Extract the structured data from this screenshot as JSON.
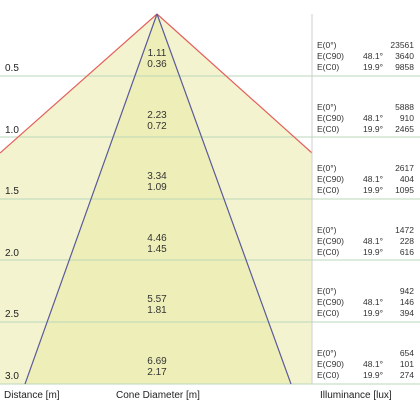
{
  "colors": {
    "cone_fill": "#f3f4cf",
    "inner_cone_fill": "#eeefb8",
    "outer_cone_line": "#e4605c",
    "inner_cone_line": "#5a5a9a",
    "grid_line": "#b9d7b9",
    "separator": "#cfcfcf"
  },
  "rows": [
    {
      "distance": "0.5",
      "d1": "1.11",
      "d2": "0.36",
      "e0_key": "E(0°)",
      "e0_val": "23561",
      "e90_key": "E(C90)",
      "e90_angle": "48.1°",
      "e90_val": "3640",
      "ec0_key": "E(C0)",
      "ec0_angle": "19.9°",
      "ec0_val": "9858"
    },
    {
      "distance": "1.0",
      "d1": "2.23",
      "d2": "0.72",
      "e0_key": "E(0°)",
      "e0_val": "5888",
      "e90_key": "E(C90)",
      "e90_angle": "48.1°",
      "e90_val": "910",
      "ec0_key": "E(C0)",
      "ec0_angle": "19.9°",
      "ec0_val": "2465"
    },
    {
      "distance": "1.5",
      "d1": "3.34",
      "d2": "1.09",
      "e0_key": "E(0°)",
      "e0_val": "2617",
      "e90_key": "E(C90)",
      "e90_angle": "48.1°",
      "e90_val": "404",
      "ec0_key": "E(C0)",
      "ec0_angle": "19.9°",
      "ec0_val": "1095"
    },
    {
      "distance": "2.0",
      "d1": "4.46",
      "d2": "1.45",
      "e0_key": "E(0°)",
      "e0_val": "1472",
      "e90_key": "E(C90)",
      "e90_angle": "48.1°",
      "e90_val": "228",
      "ec0_key": "E(C0)",
      "ec0_angle": "19.9°",
      "ec0_val": "616"
    },
    {
      "distance": "2.5",
      "d1": "5.57",
      "d2": "1.81",
      "e0_key": "E(0°)",
      "e0_val": "942",
      "e90_key": "E(C90)",
      "e90_angle": "48.1°",
      "e90_val": "146",
      "ec0_key": "E(C0)",
      "ec0_angle": "19.9°",
      "ec0_val": "394"
    },
    {
      "distance": "3.0",
      "d1": "6.69",
      "d2": "2.17",
      "e0_key": "E(0°)",
      "e0_val": "654",
      "e90_key": "E(C90)",
      "e90_angle": "48.1°",
      "e90_val": "101",
      "ec0_key": "E(C0)",
      "ec0_angle": "19.9°",
      "ec0_val": "274"
    }
  ],
  "footer": {
    "distance_label": "Distance [m]",
    "cone_label": "Cone Diameter [m]",
    "illuminance_label": "Illuminance [lux]"
  }
}
